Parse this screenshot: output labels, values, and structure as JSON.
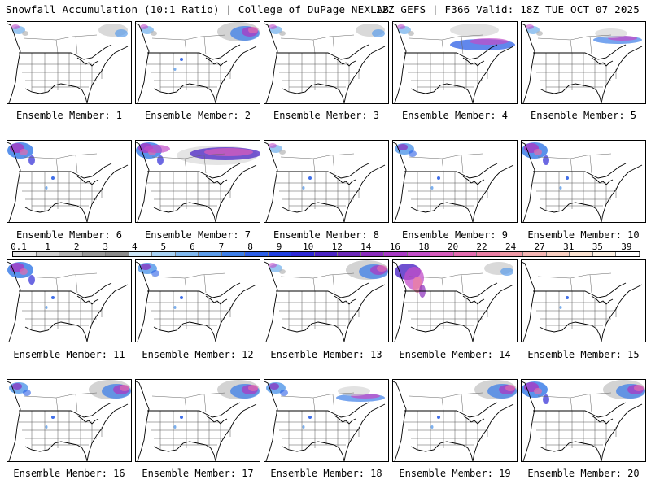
{
  "header": {
    "left": "Snowfall Accumulation (10:1 Ratio) | College of DuPage NEXLAB",
    "right": "12Z GEFS | F366 Valid: 18Z TUE OCT 07 2025"
  },
  "member_label_prefix": "Ensemble Member:",
  "members": [
    {
      "number": "1",
      "snow": [
        "nw-light",
        "ne-light"
      ]
    },
    {
      "number": "2",
      "snow": [
        "ne-heavy",
        "nw-light",
        "rockies"
      ]
    },
    {
      "number": "3",
      "snow": [
        "nw-light",
        "ne-light"
      ]
    },
    {
      "number": "4",
      "snow": [
        "canada-band",
        "nw-light"
      ]
    },
    {
      "number": "5",
      "snow": [
        "ne-band",
        "nw-light"
      ]
    },
    {
      "number": "6",
      "snow": [
        "nw-heavy",
        "rockies"
      ]
    },
    {
      "number": "7",
      "snow": [
        "nw-heavy",
        "canada-heavy"
      ]
    },
    {
      "number": "8",
      "snow": [
        "nw-light",
        "rockies"
      ]
    },
    {
      "number": "9",
      "snow": [
        "nw-med",
        "rockies"
      ]
    },
    {
      "number": "10",
      "snow": [
        "nw-heavy",
        "rockies"
      ]
    },
    {
      "number": "11",
      "snow": [
        "nw-heavy",
        "rockies"
      ]
    },
    {
      "number": "12",
      "snow": [
        "nw-med",
        "rockies"
      ]
    },
    {
      "number": "13",
      "snow": [
        "ne-heavy",
        "nw-light"
      ]
    },
    {
      "number": "14",
      "snow": [
        "nw-extreme",
        "ne-light"
      ]
    },
    {
      "number": "15",
      "snow": [
        "rockies"
      ]
    },
    {
      "number": "16",
      "snow": [
        "nw-med",
        "ne-heavy",
        "rockies"
      ]
    },
    {
      "number": "17",
      "snow": [
        "ne-heavy",
        "rockies"
      ]
    },
    {
      "number": "18",
      "snow": [
        "nw-med",
        "ne-band",
        "rockies"
      ]
    },
    {
      "number": "19",
      "snow": [
        "ne-heavy",
        "rockies"
      ]
    },
    {
      "number": "20",
      "snow": [
        "nw-heavy",
        "ne-heavy"
      ]
    }
  ],
  "scale": {
    "labels": [
      "0.1",
      "1",
      "2",
      "3",
      "4",
      "5",
      "6",
      "7",
      "8",
      "9",
      "10",
      "12",
      "14",
      "16",
      "18",
      "20",
      "22",
      "24",
      "27",
      "31",
      "35",
      "39"
    ],
    "colors": [
      "#e8e8e8",
      "#cfcfcf",
      "#b5b5b5",
      "#9a9a9a",
      "#8a8a8a",
      "#cfe8f8",
      "#a8d2f4",
      "#7fb8ee",
      "#5b9cea",
      "#3d7fe8",
      "#2c5fe6",
      "#1f3fe0",
      "#2d28d6",
      "#4b24c4",
      "#6b27b8",
      "#8a2cbc",
      "#a83ac4",
      "#c24dc8",
      "#d65cbc",
      "#e26cae",
      "#ea7fa4",
      "#f09aa6",
      "#f4b6b4",
      "#f8cfc2",
      "#fbe3d2",
      "#fdf1e4",
      "#ffffff"
    ]
  }
}
